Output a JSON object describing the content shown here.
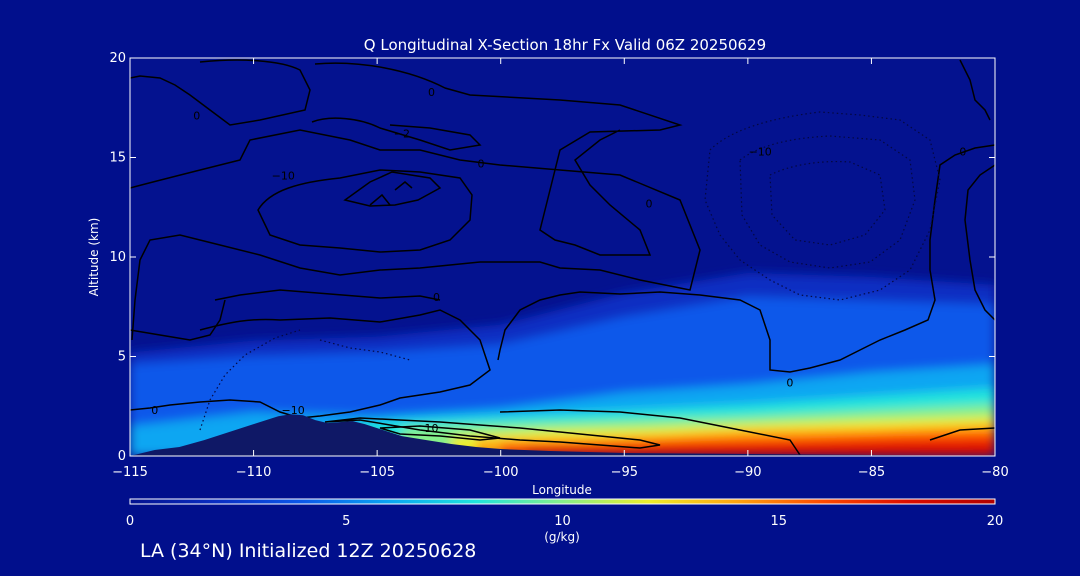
{
  "chart_data": {
    "type": "heatmap",
    "title": "Q Longitudinal X-Section 18hr  Fx Valid 06Z 20250629",
    "xlabel": "Longitude",
    "ylabel": "Altitude (km)",
    "xlim": [
      -115,
      -80
    ],
    "ylim": [
      0,
      20
    ],
    "x_ticks": [
      -115,
      -110,
      -105,
      -100,
      -95,
      -90,
      -85,
      -80
    ],
    "x_tick_labels": [
      "−115",
      "−110",
      "−105",
      "−100",
      "−95",
      "−90",
      "−85",
      "−80"
    ],
    "y_ticks": [
      0,
      5,
      10,
      15,
      20
    ],
    "y_tick_labels": [
      "0",
      "5",
      "10",
      "15",
      "20"
    ],
    "colorbar": {
      "label": "(g/kg)",
      "min": 0,
      "max": 20,
      "ticks": [
        0,
        5,
        10,
        15,
        20
      ],
      "tick_labels": [
        "0",
        "5",
        "10",
        "15",
        "20"
      ],
      "colors": [
        "#04128f",
        "#0a2ec2",
        "#0b59ea",
        "#0aa6f2",
        "#20e4dc",
        "#86f08a",
        "#eeee2a",
        "#ffa510",
        "#ff4a00",
        "#dc0c00",
        "#b00000"
      ]
    },
    "moisture_layers": [
      {
        "q_gkg": 1.5,
        "x": [
          -115,
          -110,
          -105,
          -100,
          -95,
          -90,
          -85,
          -80
        ],
        "top_km": [
          5.2,
          5.8,
          6.0,
          6.6,
          8.2,
          9.2,
          9.0,
          8.6
        ]
      },
      {
        "q_gkg": 3,
        "x": [
          -115,
          -110,
          -105,
          -100,
          -95,
          -90,
          -85,
          -80
        ],
        "top_km": [
          4.6,
          5.0,
          5.2,
          5.6,
          7.0,
          8.0,
          7.8,
          7.6
        ]
      },
      {
        "q_gkg": 4.5,
        "x": [
          -115,
          -110,
          -105,
          -100,
          -95,
          -90,
          -85,
          -80
        ],
        "top_km": [
          3.2,
          3.8,
          4.2,
          4.4,
          5.4,
          5.8,
          6.0,
          6.2
        ]
      },
      {
        "q_gkg": 6,
        "x": [
          -115,
          -110,
          -105,
          -100,
          -95,
          -90,
          -85,
          -80
        ],
        "top_km": [
          1.5,
          2.2,
          2.0,
          2.4,
          3.2,
          3.6,
          4.2,
          4.6
        ]
      },
      {
        "q_gkg": 8,
        "x": [
          -106,
          -104,
          -100,
          -95,
          -90,
          -85,
          -80
        ],
        "top_km": [
          1.6,
          1.8,
          2.0,
          2.3,
          2.6,
          3.0,
          3.4
        ]
      },
      {
        "q_gkg": 10,
        "x": [
          -104,
          -100,
          -95,
          -90,
          -85,
          -80
        ],
        "top_km": [
          1.4,
          1.6,
          1.8,
          2.0,
          2.3,
          2.6
        ]
      },
      {
        "q_gkg": 12,
        "x": [
          -102,
          -98,
          -94,
          -90,
          -85,
          -80
        ],
        "top_km": [
          1.0,
          1.3,
          1.4,
          1.6,
          1.8,
          2.0
        ]
      },
      {
        "q_gkg": 14,
        "x": [
          -101,
          -97,
          -93,
          -90,
          -85,
          -80
        ],
        "top_km": [
          0.8,
          0.9,
          1.1,
          1.3,
          1.4,
          1.6
        ]
      },
      {
        "q_gkg": 16,
        "x": [
          -100,
          -96,
          -92,
          -88,
          -84,
          -80
        ],
        "top_km": [
          0.6,
          0.7,
          0.85,
          0.95,
          1.1,
          1.2
        ]
      },
      {
        "q_gkg": 18,
        "x": [
          -99,
          -95,
          -91,
          -88,
          -84,
          -80
        ],
        "top_km": [
          0.4,
          0.45,
          0.55,
          0.6,
          0.7,
          0.75
        ]
      }
    ],
    "terrain": {
      "x": [
        -115,
        -114,
        -113,
        -112,
        -111,
        -110,
        -109,
        -108.5,
        -108,
        -107.5,
        -107,
        -106.5,
        -106,
        -105.5,
        -105,
        -104.5,
        -104,
        -103,
        -102,
        -101,
        -100,
        -98,
        -95,
        -90,
        -85,
        -80
      ],
      "height_km": [
        0.0,
        0.3,
        0.45,
        0.8,
        1.2,
        1.6,
        2.0,
        2.1,
        2.05,
        1.8,
        1.65,
        1.7,
        1.75,
        1.6,
        1.4,
        1.2,
        1.0,
        0.8,
        0.6,
        0.45,
        0.35,
        0.25,
        0.15,
        0.1,
        0.05,
        0.0
      ]
    },
    "contour_labels": [
      {
        "text": "0",
        "x": -102.8,
        "y": 18.3
      },
      {
        "text": "−10",
        "x": -108.8,
        "y": 14.1
      },
      {
        "text": "−10",
        "x": -89.5,
        "y": 15.3
      },
      {
        "text": "0",
        "x": -94.0,
        "y": 12.7
      },
      {
        "text": "0",
        "x": -81.3,
        "y": 15.3
      },
      {
        "text": "0",
        "x": -100.8,
        "y": 14.7
      },
      {
        "text": "0",
        "x": -112.3,
        "y": 17.1
      },
      {
        "text": "−2",
        "x": -104.0,
        "y": 16.2
      },
      {
        "text": "0",
        "x": -102.6,
        "y": 8.0
      },
      {
        "text": "0",
        "x": -88.3,
        "y": 3.7
      },
      {
        "text": "0",
        "x": -114.0,
        "y": 2.3
      },
      {
        "text": "−10",
        "x": -108.4,
        "y": 2.3
      },
      {
        "text": "10",
        "x": -102.8,
        "y": 1.4
      }
    ]
  },
  "footer": "LA (34°N) Initialized 12Z 20250628"
}
